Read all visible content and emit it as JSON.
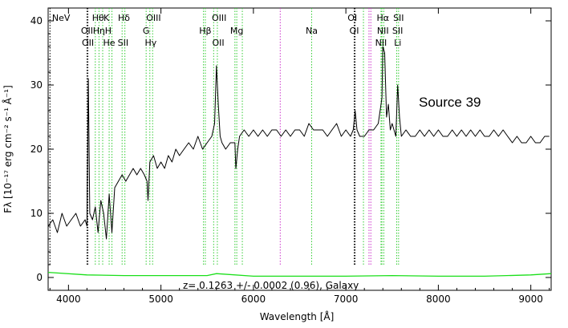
{
  "chart_data": {
    "type": "line",
    "xlabel": "Wavelength [Å]",
    "ylabel": "Fλ [10⁻¹⁷ erg cm⁻² s⁻¹ Å⁻¹]",
    "xlim": [
      3780,
      9220
    ],
    "ylim": [
      -2,
      42
    ],
    "x_ticks": [
      4000,
      5000,
      6000,
      7000,
      8000,
      9000
    ],
    "y_ticks": [
      0,
      10,
      20,
      30,
      40
    ],
    "grid": false,
    "annotation": "Source 39",
    "redshift_text": "z= 0.1263 +/- 0.0002 (0.96), Galaxy",
    "colors": {
      "spectrum": "#000000",
      "error": "#1adf1a",
      "emission_lines": "#33cc33",
      "sky_lines": "#cc33cc",
      "absorption_lines": "#000000"
    },
    "spectrum": {
      "name": "",
      "x": [
        3780,
        3830,
        3880,
        3930,
        3980,
        4030,
        4080,
        4130,
        4180,
        4200,
        4215,
        4230,
        4260,
        4290,
        4320,
        4350,
        4380,
        4410,
        4440,
        4470,
        4500,
        4540,
        4580,
        4620,
        4660,
        4700,
        4740,
        4780,
        4820,
        4850,
        4860,
        4880,
        4920,
        4960,
        5000,
        5040,
        5080,
        5120,
        5160,
        5200,
        5250,
        5300,
        5350,
        5400,
        5450,
        5500,
        5550,
        5580,
        5600,
        5620,
        5640,
        5660,
        5700,
        5750,
        5800,
        5810,
        5830,
        5850,
        5900,
        5950,
        6000,
        6050,
        6100,
        6150,
        6200,
        6250,
        6300,
        6350,
        6400,
        6450,
        6500,
        6550,
        6600,
        6650,
        6700,
        6750,
        6800,
        6850,
        6900,
        6950,
        7000,
        7050,
        7080,
        7100,
        7120,
        7150,
        7200,
        7250,
        7300,
        7350,
        7390,
        7400,
        7420,
        7440,
        7460,
        7480,
        7500,
        7520,
        7540,
        7560,
        7580,
        7600,
        7650,
        7700,
        7750,
        7800,
        7850,
        7900,
        7950,
        8000,
        8050,
        8100,
        8150,
        8200,
        8250,
        8300,
        8350,
        8400,
        8450,
        8500,
        8550,
        8600,
        8650,
        8700,
        8750,
        8800,
        8850,
        8900,
        8950,
        9000,
        9050,
        9100,
        9150,
        9200
      ],
      "y": [
        8,
        9,
        7,
        10,
        8,
        9,
        10,
        8,
        9,
        8,
        31,
        10,
        9,
        11,
        7,
        12,
        10,
        6,
        13,
        7,
        14,
        15,
        16,
        15,
        16,
        17,
        16,
        17,
        16,
        15,
        12,
        18,
        19,
        17,
        18,
        17,
        19,
        18,
        20,
        19,
        20,
        21,
        20,
        22,
        20,
        21,
        22,
        24,
        33,
        27,
        22,
        21,
        20,
        21,
        21,
        17,
        20,
        22,
        23,
        22,
        23,
        22,
        23,
        22,
        23,
        23,
        22,
        23,
        22,
        23,
        23,
        22,
        24,
        23,
        23,
        23,
        22,
        23,
        24,
        22,
        23,
        22,
        23,
        26,
        23,
        22,
        22,
        23,
        23,
        24,
        28,
        36,
        35,
        25,
        27,
        23,
        24,
        23,
        22,
        30,
        25,
        22,
        23,
        22,
        22,
        23,
        22,
        23,
        22,
        23,
        22,
        22,
        23,
        22,
        23,
        22,
        23,
        22,
        23,
        22,
        22,
        23,
        22,
        23,
        22,
        21,
        22,
        21,
        21,
        22,
        21,
        21,
        22,
        22
      ]
    },
    "error": {
      "name": "",
      "x": [
        3780,
        4200,
        4600,
        5000,
        5500,
        5600,
        6000,
        6500,
        7000,
        7500,
        8000,
        8500,
        9000,
        9220
      ],
      "y": [
        0.8,
        0.4,
        0.3,
        0.3,
        0.3,
        0.6,
        0.2,
        0.2,
        0.2,
        0.3,
        0.2,
        0.2,
        0.4,
        0.6
      ]
    },
    "top_labels": [
      {
        "text": "NeV",
        "x": 3920,
        "row": 1
      },
      {
        "text": "Hθ",
        "x": 4320,
        "row": 1
      },
      {
        "text": "K",
        "x": 4410,
        "row": 1
      },
      {
        "text": "Hδ",
        "x": 4600,
        "row": 1
      },
      {
        "text": "OIII",
        "x": 4920,
        "row": 1
      },
      {
        "text": "OIII",
        "x": 5630,
        "row": 1
      },
      {
        "text": "OI",
        "x": 7070,
        "row": 1
      },
      {
        "text": "Hα",
        "x": 7400,
        "row": 1
      },
      {
        "text": "SII",
        "x": 7570,
        "row": 1
      },
      {
        "text": "OII",
        "x": 4200,
        "row": 2
      },
      {
        "text": "Hη",
        "x": 4330,
        "row": 2
      },
      {
        "text": "H",
        "x": 4430,
        "row": 2
      },
      {
        "text": "G",
        "x": 4840,
        "row": 2
      },
      {
        "text": "Hβ",
        "x": 5480,
        "row": 2
      },
      {
        "text": "Mg",
        "x": 5820,
        "row": 2
      },
      {
        "text": "Na",
        "x": 6630,
        "row": 2
      },
      {
        "text": "OI",
        "x": 7090,
        "row": 2
      },
      {
        "text": "NII",
        "x": 7400,
        "row": 2
      },
      {
        "text": "SII",
        "x": 7560,
        "row": 2
      },
      {
        "text": "OII",
        "x": 4210,
        "row": 3
      },
      {
        "text": "He",
        "x": 4440,
        "row": 3
      },
      {
        "text": "SII",
        "x": 4590,
        "row": 3
      },
      {
        "text": "Hγ",
        "x": 4890,
        "row": 3
      },
      {
        "text": "OII",
        "x": 5620,
        "row": 3
      },
      {
        "text": "NII",
        "x": 7380,
        "row": 3
      },
      {
        "text": "Li",
        "x": 7560,
        "row": 3
      }
    ],
    "green_lines": [
      4290,
      4330,
      4370,
      4440,
      4470,
      4580,
      4610,
      4840,
      4880,
      4910,
      5460,
      5480,
      5570,
      5610,
      5800,
      5820,
      5880,
      6630,
      7190,
      7380,
      7390,
      7410,
      7550,
      7570
    ],
    "magenta_lines": [
      6290,
      7250,
      7270
    ],
    "black_lines": [
      3800,
      4200,
      4210,
      7090,
      7100
    ]
  }
}
